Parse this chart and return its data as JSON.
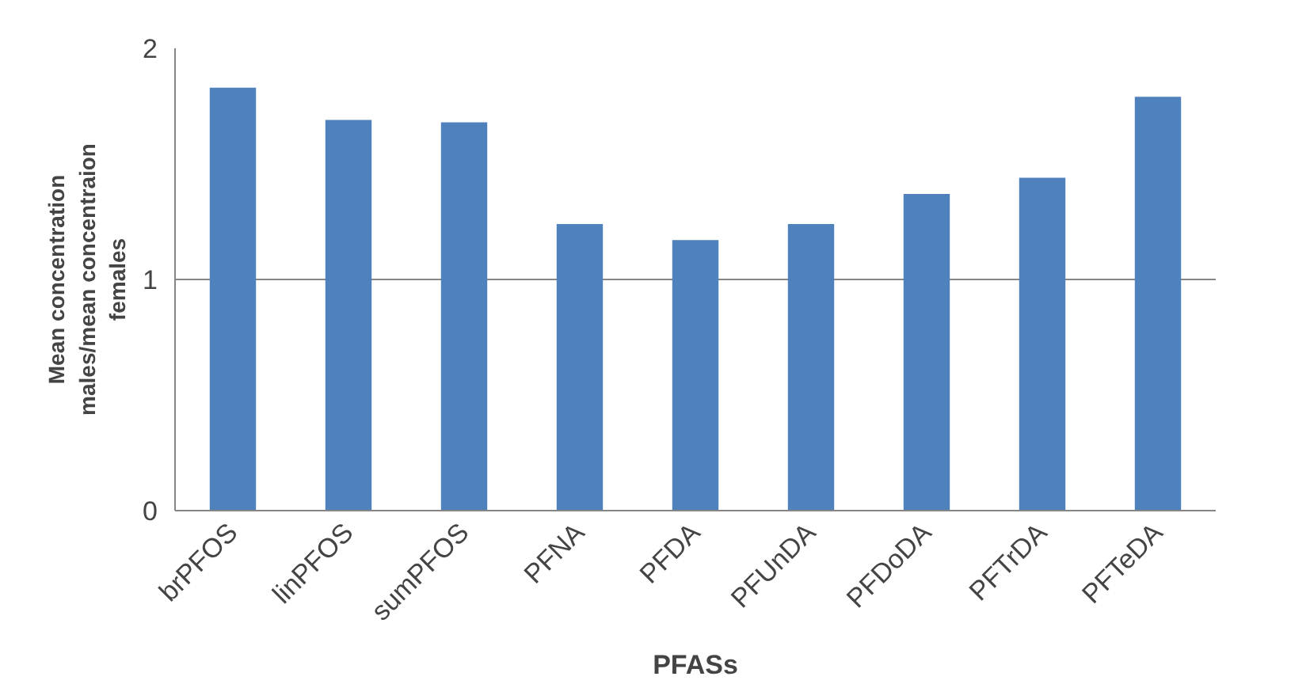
{
  "chart_data": {
    "type": "bar",
    "xlabel": "PFASs",
    "ylabel": "Mean concentration males/mean concentraion females",
    "categories": [
      "brPFOS",
      "linPFOS",
      "sumPFOS",
      "PFNA",
      "PFDA",
      "PFUnDA",
      "PFDoDA",
      "PFTrDA",
      "PFTeDA"
    ],
    "values": [
      1.83,
      1.69,
      1.68,
      1.24,
      1.17,
      1.24,
      1.37,
      1.44,
      1.79
    ],
    "color": "#4f81bd",
    "ylim": [
      0,
      2
    ],
    "yticks": [
      0,
      1,
      2
    ],
    "grid": "y"
  }
}
